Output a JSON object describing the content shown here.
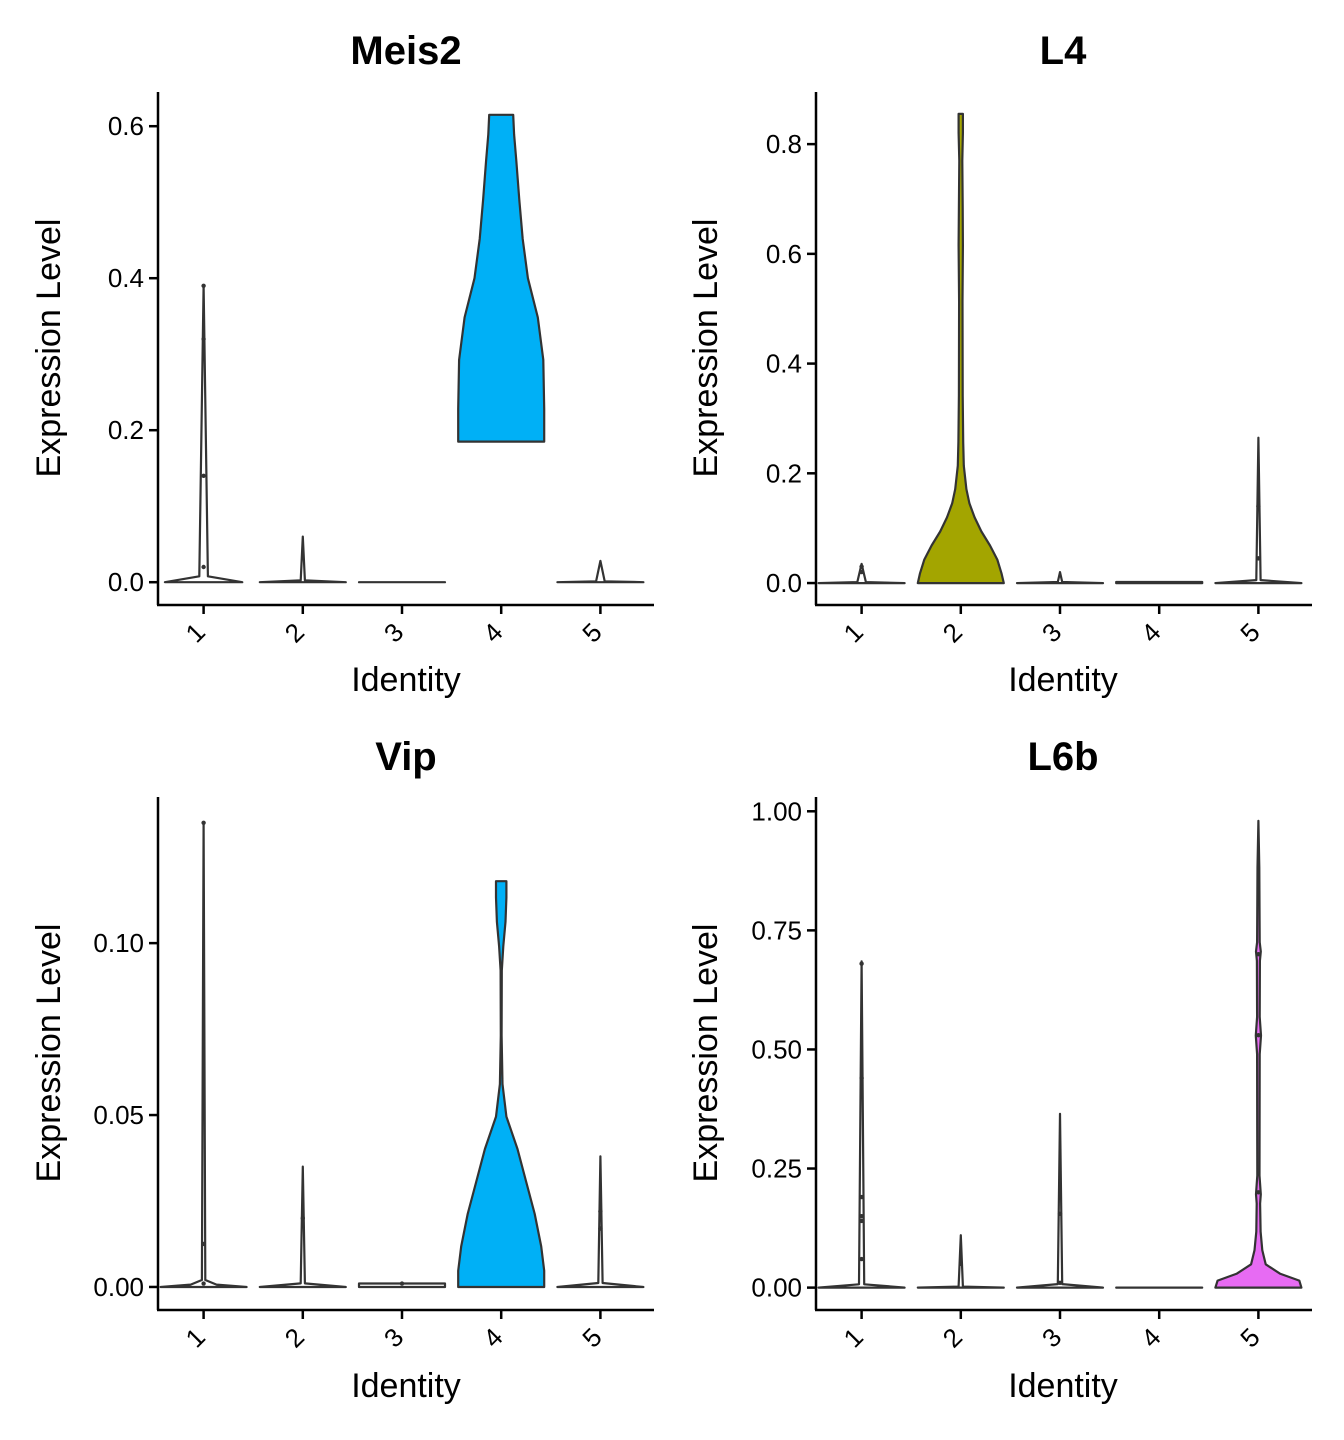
{
  "colors": {
    "cluster2": "#A3A500",
    "cluster4": "#00B0F6",
    "cluster5": "#E76BF3",
    "outline": "#333333",
    "axis": "#000000"
  },
  "chart_data": [
    {
      "type": "violin",
      "title": "Meis2",
      "xlabel": "Identity",
      "ylabel": "Expression Level",
      "categories": [
        "1",
        "2",
        "3",
        "4",
        "5"
      ],
      "ylim": [
        -0.03,
        0.645
      ],
      "yticks": [
        0.0,
        0.2,
        0.4,
        0.6
      ],
      "ytick_labels": [
        "0.0",
        "0.2",
        "0.4",
        "0.6"
      ],
      "fill_category": "4",
      "fill_color": "#00B0F6",
      "violins": [
        {
          "category": "1",
          "min": 0,
          "max": 0.39,
          "points": [
            0.39,
            0.32,
            0.14,
            0.02
          ]
        },
        {
          "category": "2",
          "min": 0,
          "max": 0.06,
          "points": []
        },
        {
          "category": "3",
          "min": 0,
          "max": 0.0,
          "points": []
        },
        {
          "category": "4",
          "min": 0.185,
          "max": 0.615,
          "points": []
        },
        {
          "category": "5",
          "min": 0,
          "max": 0.028,
          "points": []
        }
      ]
    },
    {
      "type": "violin",
      "title": "L4",
      "xlabel": "Identity",
      "ylabel": "Expression Level",
      "categories": [
        "1",
        "2",
        "3",
        "4",
        "5"
      ],
      "ylim": [
        -0.04,
        0.895
      ],
      "yticks": [
        0.0,
        0.2,
        0.4,
        0.6,
        0.8
      ],
      "ytick_labels": [
        "0.0",
        "0.2",
        "0.4",
        "0.6",
        "0.8"
      ],
      "fill_category": "2",
      "fill_color": "#A3A500",
      "violins": [
        {
          "category": "1",
          "min": 0,
          "max": 0.035,
          "points": [
            0.03,
            0.02
          ]
        },
        {
          "category": "2",
          "min": 0,
          "max": 0.855,
          "points": []
        },
        {
          "category": "3",
          "min": 0,
          "max": 0.02,
          "points": []
        },
        {
          "category": "4",
          "min": 0,
          "max": 0.002,
          "points": []
        },
        {
          "category": "5",
          "min": 0,
          "max": 0.265,
          "points": [
            0.14,
            0.045
          ]
        }
      ]
    },
    {
      "type": "violin",
      "title": "Vip",
      "xlabel": "Identity",
      "ylabel": "Expression Level",
      "categories": [
        "1",
        "2",
        "3",
        "4",
        "5"
      ],
      "ylim": [
        -0.0067,
        0.1425
      ],
      "yticks": [
        0.0,
        0.05,
        0.1
      ],
      "ytick_labels": [
        "0.00",
        "0.05",
        "0.10"
      ],
      "fill_category": "4",
      "fill_color": "#00B0F6",
      "violins": [
        {
          "category": "1",
          "min": 0,
          "max": 0.135,
          "points": [
            0.135,
            0.0125,
            0.001
          ]
        },
        {
          "category": "2",
          "min": 0,
          "max": 0.035,
          "points": [
            0.02
          ]
        },
        {
          "category": "3",
          "min": 0,
          "max": 0.001,
          "points": [
            0.001
          ]
        },
        {
          "category": "4",
          "min": 0,
          "max": 0.118,
          "points": []
        },
        {
          "category": "5",
          "min": 0,
          "max": 0.038,
          "points": [
            0.022,
            0.017
          ]
        }
      ]
    },
    {
      "type": "violin",
      "title": "L6b",
      "xlabel": "Identity",
      "ylabel": "Expression Level",
      "categories": [
        "1",
        "2",
        "3",
        "4",
        "5"
      ],
      "ylim": [
        -0.047,
        1.03
      ],
      "yticks": [
        0.0,
        0.25,
        0.5,
        0.75,
        1.0
      ],
      "ytick_labels": [
        "0.00",
        "0.25",
        "0.50",
        "0.75",
        "1.00"
      ],
      "fill_category": "5",
      "fill_color": "#E76BF3",
      "violins": [
        {
          "category": "1",
          "min": 0,
          "max": 0.685,
          "points": [
            0.68,
            0.44,
            0.19,
            0.15,
            0.14,
            0.06
          ]
        },
        {
          "category": "2",
          "min": 0,
          "max": 0.11,
          "points": [
            0.05
          ]
        },
        {
          "category": "3",
          "min": 0,
          "max": 0.365,
          "points": [
            0.155,
            0.01
          ]
        },
        {
          "category": "4",
          "min": 0,
          "max": 0.0,
          "points": []
        },
        {
          "category": "5",
          "min": 0,
          "max": 0.98,
          "points": [
            0.7,
            0.53,
            0.2
          ]
        }
      ]
    }
  ]
}
